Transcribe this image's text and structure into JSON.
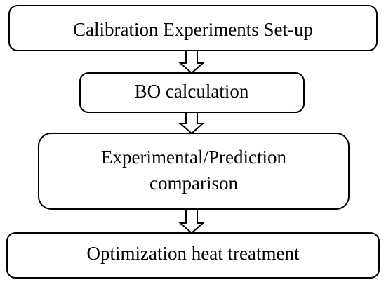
{
  "nodes": [
    {
      "lines": [
        "Calibration Experiments Set-up"
      ]
    },
    {
      "lines": [
        "BO calculation"
      ]
    },
    {
      "lines": [
        "Experimental/Prediction",
        "comparison"
      ]
    },
    {
      "lines": [
        "Optimization heat treatment"
      ]
    }
  ]
}
